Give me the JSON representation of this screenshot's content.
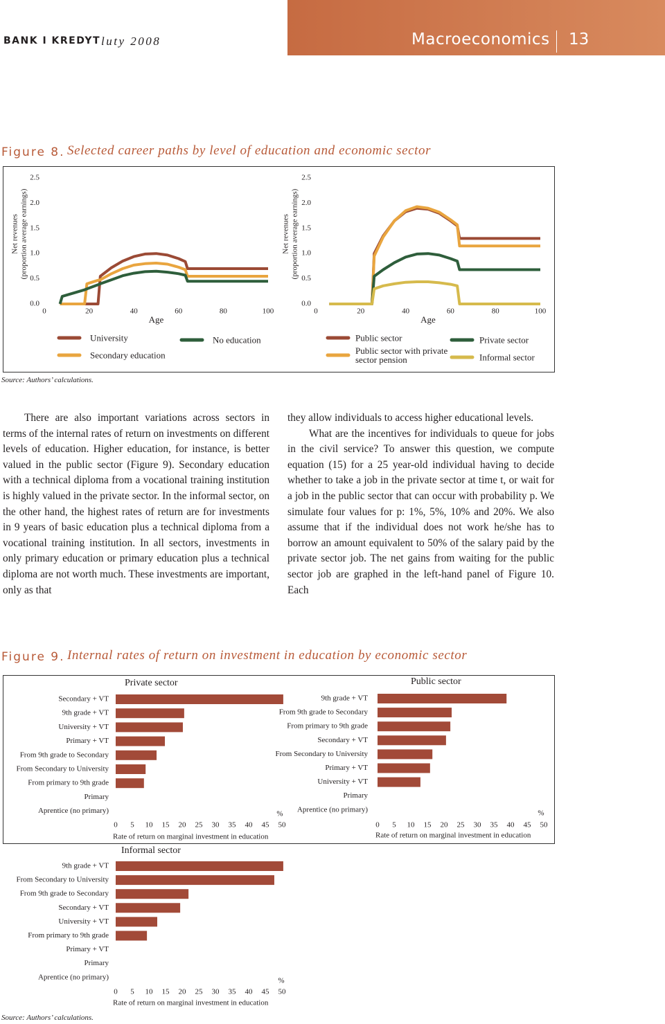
{
  "header": {
    "publication": "BANK I KREDYT",
    "issue": "luty 2008",
    "section": "Macroeconomics",
    "page": "13"
  },
  "figure8": {
    "label": "Figure 8.",
    "title": "Selected career paths by level of education and economic sector",
    "source": "Source: Authors’ calculations."
  },
  "text": {
    "left": [
      "There are also important variations across sectors in terms of the internal rates of return on investments on different levels of education. Higher education, for instance, is better valued in the public sector (Figure 9). Secondary education with a technical diploma from a vocational training institution is highly valued in the private sector. In the informal sector, on the other hand, the highest rates of return are for investments in 9 years of basic education plus a technical diploma from a vocational training institution. In all sectors, investments in only primary education or primary education plus a technical diploma are not worth much. These investments are important, only as that"
    ],
    "right": [
      "they allow individuals to access higher educational levels.",
      "What are the incentives for individuals to queue for jobs in the civil service? To answer this question, we compute equation (15) for a 25 year-old individual having to decide whether to take a job in the private sector at time t, or wait for a job in the public sector that can occur with probability p. We simulate four values for p: 1%, 5%, 10% and 20%. We also assume that if the individual does not work he/she has to borrow an amount equivalent to 50% of the salary paid by the private sector job. The net gains from waiting for the public sector job are graphed in the left-hand panel of Figure 10. Each"
    ]
  },
  "figure9": {
    "label": "Figure 9.",
    "title": "Internal rates of return on investment in education by economic sector",
    "source": "Source: Authors’ calculations."
  },
  "chart_data": [
    {
      "type": "line",
      "xlabel": "Age",
      "ylabel": [
        "Net revenues",
        "(proportion average earnings)"
      ],
      "x": [
        7,
        8,
        18,
        19,
        24,
        25,
        30,
        35,
        40,
        45,
        50,
        55,
        60,
        63,
        64,
        100
      ],
      "series": [
        {
          "name": "University",
          "color": "#9b4a35",
          "values": [
            0,
            0,
            0,
            0,
            0,
            0.55,
            0.72,
            0.85,
            0.94,
            0.99,
            1.0,
            0.97,
            0.9,
            0.84,
            0.7,
            0.7
          ]
        },
        {
          "name": "Secondary education",
          "color": "#e9a53f",
          "values": [
            0,
            0,
            0,
            0.4,
            0.47,
            0.48,
            0.6,
            0.7,
            0.77,
            0.8,
            0.81,
            0.79,
            0.73,
            0.68,
            0.55,
            0.55
          ]
        },
        {
          "name": "No education",
          "color": "#2e5e3b",
          "values": [
            0,
            0.15,
            0.28,
            0.3,
            0.38,
            0.4,
            0.48,
            0.56,
            0.61,
            0.64,
            0.65,
            0.63,
            0.6,
            0.57,
            0.45,
            0.45
          ]
        }
      ],
      "xlim": [
        0,
        100
      ],
      "xticks": [
        0,
        20,
        40,
        60,
        80,
        100
      ],
      "ylim": [
        0,
        2.5
      ],
      "yticks": [
        {
          "value": 0,
          "label": "0.0"
        },
        {
          "value": 0.5,
          "label": "0.5"
        },
        {
          "value": 1,
          "label": "1.0"
        },
        {
          "value": 1.5,
          "label": "1.5"
        },
        {
          "value": 2,
          "label": "2.0"
        },
        {
          "value": 2.5,
          "label": "2.5"
        }
      ]
    },
    {
      "type": "line",
      "xlabel": "Age",
      "ylabel": [
        "Net revenues",
        "(proportion average earnings)"
      ],
      "x": [
        6,
        25,
        26,
        30,
        35,
        40,
        45,
        50,
        55,
        60,
        63,
        64,
        100
      ],
      "series": [
        {
          "name": "Public sector",
          "color": "#9b4a35",
          "values": [
            0,
            0,
            1.0,
            1.35,
            1.65,
            1.83,
            1.9,
            1.88,
            1.8,
            1.65,
            1.55,
            1.3,
            1.3
          ]
        },
        {
          "name": "Public sector with private sector pension",
          "color": "#e9a53f",
          "values": [
            0,
            0,
            0.95,
            1.33,
            1.65,
            1.85,
            1.93,
            1.9,
            1.82,
            1.67,
            1.57,
            1.15,
            1.15
          ]
        },
        {
          "name": "Private sector",
          "color": "#2e5e3b",
          "values": [
            0,
            0,
            0.55,
            0.68,
            0.82,
            0.93,
            0.99,
            1.0,
            0.97,
            0.9,
            0.85,
            0.68,
            0.68
          ]
        },
        {
          "name": "Informal sector",
          "color": "#d6ba4c",
          "values": [
            0,
            0,
            0.3,
            0.36,
            0.4,
            0.43,
            0.44,
            0.44,
            0.42,
            0.39,
            0.36,
            0,
            0
          ]
        }
      ],
      "xlim": [
        0,
        100
      ],
      "xticks": [
        0,
        20,
        40,
        60,
        80,
        100
      ],
      "ylim": [
        0,
        2.5
      ],
      "yticks": [
        {
          "value": 0,
          "label": "0.0"
        },
        {
          "value": 0.5,
          "label": "0.5"
        },
        {
          "value": 1,
          "label": "1.0"
        },
        {
          "value": 1.5,
          "label": "1.5"
        },
        {
          "value": 2,
          "label": "2.0"
        },
        {
          "value": 2.5,
          "label": "2.5"
        }
      ]
    },
    {
      "type": "bar",
      "title": "Private sector",
      "xlabel": "Rate of return on marginal investment in education",
      "unit": "%",
      "color": "#a24a38",
      "categories": [
        "Secondary + VT",
        "9th grade + VT",
        "University + VT",
        "Primary + VT",
        "From 9th grade to Secondary",
        "From Secondary to University",
        "From primary to 9th grade",
        "Primary",
        "Aprentice (no primary)"
      ],
      "values": [
        50.4,
        20.6,
        20.2,
        14.8,
        12.3,
        9,
        8.5,
        0,
        0
      ],
      "xlim": [
        0,
        50
      ],
      "xticks": [
        0,
        5,
        10,
        15,
        20,
        25,
        30,
        35,
        40,
        45,
        50
      ]
    },
    {
      "type": "bar",
      "title": "Public sector",
      "xlabel": "Rate of return on marginal investment in education",
      "unit": "%",
      "color": "#a24a38",
      "categories": [
        "9th grade + VT",
        "From 9th grade to Secondary",
        "From primary to 9th grade",
        "Secondary + VT",
        "From Secondary to University",
        "Primary + VT",
        "University + VT",
        "Primary",
        "Aprentice (no primary)"
      ],
      "values": [
        38.8,
        22.3,
        21.9,
        20.6,
        16.5,
        15.8,
        12.9,
        0,
        0
      ],
      "xlim": [
        0,
        50
      ],
      "xticks": [
        0,
        5,
        10,
        15,
        20,
        25,
        30,
        35,
        40,
        45,
        50
      ]
    },
    {
      "type": "bar",
      "title": "Informal sector",
      "xlabel": "Rate of return on marginal investment in education",
      "unit": "%",
      "color": "#a24a38",
      "categories": [
        "9th grade + VT",
        "From Secondary to University",
        "From 9th grade to Secondary",
        "Secondary + VT",
        "University + VT",
        "From primary to 9th grade",
        "Primary + VT",
        "Primary",
        "Aprentice (no primary)"
      ],
      "values": [
        50.4,
        47.7,
        21.9,
        19.4,
        12.5,
        9.4,
        0,
        0,
        0
      ],
      "xlim": [
        0,
        50
      ],
      "xticks": [
        0,
        5,
        10,
        15,
        20,
        25,
        30,
        35,
        40,
        45,
        50
      ]
    }
  ]
}
